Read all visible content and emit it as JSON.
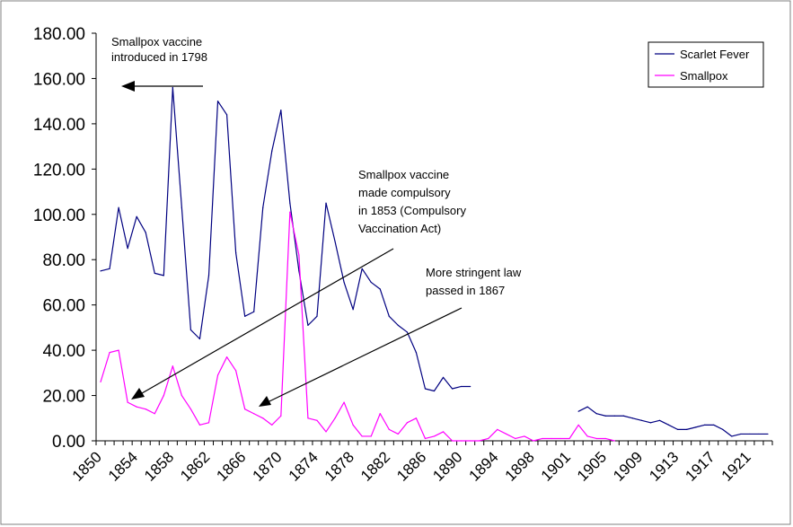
{
  "chart_data": {
    "type": "line",
    "title": "",
    "xlabel": "",
    "ylabel": "",
    "ylim": [
      0,
      180
    ],
    "y_ticks": [
      "0.00",
      "20.00",
      "40.00",
      "60.00",
      "80.00",
      "100.00",
      "120.00",
      "140.00",
      "160.00",
      "180.00"
    ],
    "x_tick_labels": [
      "1850",
      "1854",
      "1858",
      "1862",
      "1866",
      "1870",
      "1874",
      "1878",
      "1882",
      "1886",
      "1890",
      "1894",
      "1898",
      "1901",
      "1905",
      "1909",
      "1913",
      "1917",
      "1921"
    ],
    "grid": false,
    "legend": "top-right",
    "series": [
      {
        "name": "Scarlet Fever",
        "color": "#000080",
        "values": [
          75,
          76,
          103,
          85,
          99,
          92,
          74,
          73,
          156,
          103,
          49,
          45,
          73,
          150,
          144,
          83,
          55,
          57,
          103,
          128,
          146,
          105,
          75,
          51,
          55,
          105,
          88,
          70,
          58,
          76,
          70,
          67,
          55,
          51,
          48,
          39,
          23,
          22,
          28,
          23,
          24,
          24,
          null,
          null,
          null,
          null,
          null,
          null,
          null,
          null,
          null,
          null,
          null,
          13,
          15,
          12,
          11,
          11,
          11,
          10,
          9,
          8,
          9,
          7,
          5,
          5,
          6,
          7,
          7,
          5,
          2,
          3,
          3,
          3,
          3
        ]
      },
      {
        "name": "Smallpox",
        "color": "#ff00ff",
        "values": [
          26,
          39,
          40,
          17,
          15,
          14,
          12,
          20,
          33,
          20,
          14,
          7,
          8,
          29,
          37,
          31,
          14,
          12,
          10,
          7,
          11,
          101,
          82,
          10,
          9,
          4,
          10,
          17,
          7,
          2,
          2,
          12,
          5,
          3,
          8,
          10,
          1,
          2,
          4,
          0,
          0,
          0,
          0,
          1,
          5,
          3,
          1,
          2,
          0,
          1,
          1,
          1,
          1,
          7,
          2,
          1,
          1,
          0
        ]
      }
    ],
    "annotations": [
      {
        "id": "vaccine-1798",
        "lines": [
          "Smallpox vaccine",
          "introduced in 1798"
        ]
      },
      {
        "id": "vaccine-1853",
        "lines": [
          "Smallpox vaccine",
          "made compulsory",
          "in 1853 (Compulsory",
          "Vaccination Act)"
        ]
      },
      {
        "id": "law-1867",
        "lines": [
          "More stringent law",
          "passed in 1867"
        ]
      }
    ]
  }
}
